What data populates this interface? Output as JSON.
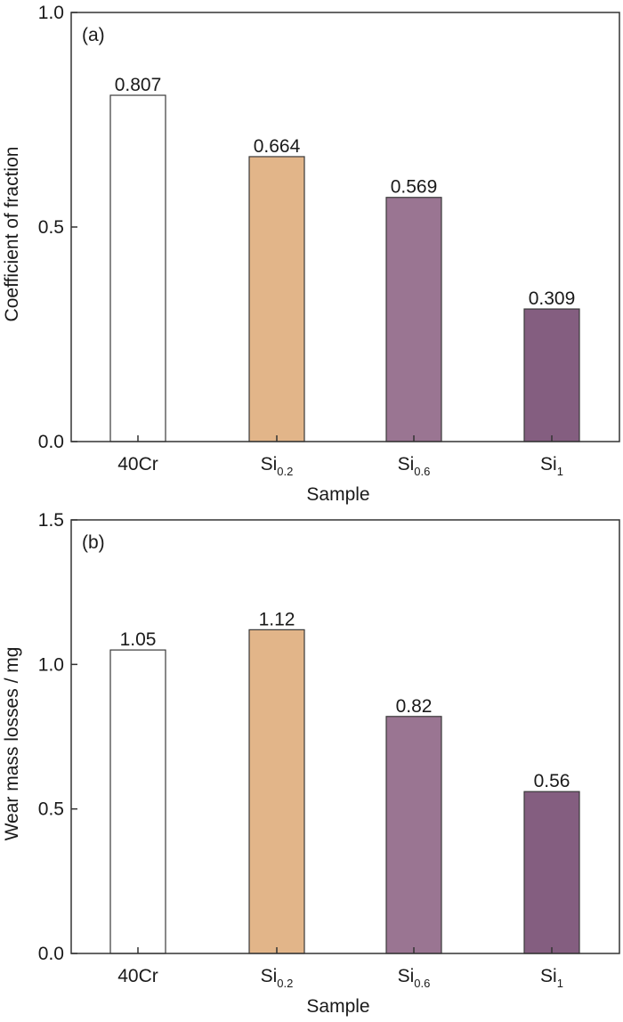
{
  "chart_data": [
    {
      "type": "bar",
      "panel_label": "(a)",
      "categories": [
        {
          "base": "40Cr",
          "sub": ""
        },
        {
          "base": "Si",
          "sub": "0.2"
        },
        {
          "base": "Si",
          "sub": "0.6"
        },
        {
          "base": "Si",
          "sub": "1"
        }
      ],
      "values": [
        0.807,
        0.664,
        0.569,
        0.309
      ],
      "value_labels": [
        "0.807",
        "0.664",
        "0.569",
        "0.309"
      ],
      "bar_colors": [
        "#ffffff",
        "#e2b589",
        "#9a7592",
        "#845e80"
      ],
      "xlabel": "Sample",
      "ylabel": "Coefficient of fraction",
      "ylim": [
        0,
        1.0
      ],
      "yticks": [
        0,
        0.5,
        1.0
      ],
      "ytick_labels": [
        "0.0",
        "0.5",
        "1.0"
      ],
      "grid": false
    },
    {
      "type": "bar",
      "panel_label": "(b)",
      "categories": [
        {
          "base": "40Cr",
          "sub": ""
        },
        {
          "base": "Si",
          "sub": "0.2"
        },
        {
          "base": "Si",
          "sub": "0.6"
        },
        {
          "base": "Si",
          "sub": "1"
        }
      ],
      "values": [
        1.05,
        1.12,
        0.82,
        0.56
      ],
      "value_labels": [
        "1.05",
        "1.12",
        "0.82",
        "0.56"
      ],
      "bar_colors": [
        "#ffffff",
        "#e2b589",
        "#9a7592",
        "#845e80"
      ],
      "xlabel": "Sample",
      "ylabel": "Wear mass losses / mg",
      "ylim": [
        0,
        1.5
      ],
      "yticks": [
        0,
        0.5,
        1.0,
        1.5
      ],
      "ytick_labels": [
        "0.0",
        "0.5",
        "1.0",
        "1.5"
      ],
      "grid": false
    }
  ]
}
